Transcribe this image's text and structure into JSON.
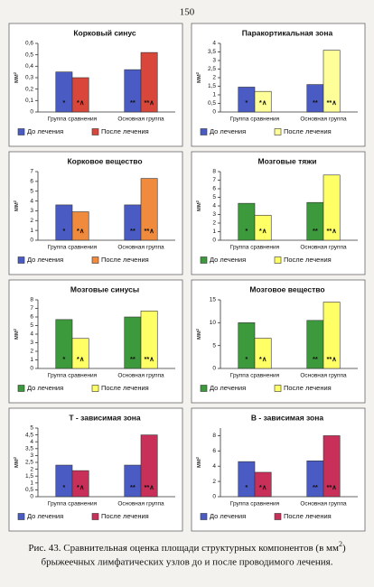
{
  "page_number": "150",
  "caption": [
    "Рис. 43. Сравнительная оценка площади структурных компонентов (в мм",
    "2",
    ")",
    "брыжеечных лимфатических узлов до и после проводимого лечения."
  ],
  "chart_data": [
    {
      "type": "bar",
      "title": "Корковый синус",
      "ylabel": "мм²",
      "categories": [
        "Группа сравнения",
        "Основная группа"
      ],
      "series": [
        {
          "name": "До лечения",
          "color": "#4a5cc4",
          "values": [
            0.35,
            0.37
          ],
          "bar_labels": [
            "*",
            "**"
          ]
        },
        {
          "name": "После лечения",
          "color": "#d9463a",
          "values": [
            0.3,
            0.52
          ],
          "bar_labels": [
            "*∧",
            "**∧"
          ]
        }
      ],
      "ylim": [
        0,
        0.6
      ],
      "yticks": [
        0,
        {
          "value": 0.1,
          "label": "0,1"
        },
        {
          "value": 0.2,
          "label": "0,2"
        },
        {
          "value": 0.3,
          "label": "0,3"
        },
        {
          "value": 0.4,
          "label": "0,4"
        },
        {
          "value": 0.5,
          "label": "0,5"
        },
        {
          "value": 0.6,
          "label": "0,6"
        }
      ],
      "grid": false
    },
    {
      "type": "bar",
      "title": "Паракортикальная зона",
      "ylabel": "мм²",
      "categories": [
        "Группа сравнения",
        "Основная группа"
      ],
      "series": [
        {
          "name": "До лечения",
          "color": "#4a5cc4",
          "values": [
            1.45,
            1.6
          ],
          "bar_labels": [
            "*",
            "**"
          ]
        },
        {
          "name": "После лечения",
          "color": "#ffff99",
          "values": [
            1.2,
            3.6
          ],
          "bar_labels": [
            "*∧",
            "**∧"
          ]
        }
      ],
      "ylim": [
        0,
        4
      ],
      "yticks": [
        0,
        {
          "value": 0.5,
          "label": "0,5"
        },
        1,
        {
          "value": 1.5,
          "label": "1,5"
        },
        2,
        {
          "value": 2.5,
          "label": "2,5"
        },
        3,
        {
          "value": 3.5,
          "label": "3,5"
        },
        4
      ],
      "grid": false
    },
    {
      "type": "bar",
      "title": "Корковое вещество",
      "ylabel": "мм²",
      "categories": [
        "Группа сравнения",
        "Основная группа"
      ],
      "series": [
        {
          "name": "До лечения",
          "color": "#4a5cc4",
          "values": [
            3.6,
            3.6
          ],
          "bar_labels": [
            "*",
            "**"
          ]
        },
        {
          "name": "После лечения",
          "color": "#f08a3c",
          "values": [
            2.9,
            6.3
          ],
          "bar_labels": [
            "*∧",
            "**∧"
          ]
        }
      ],
      "ylim": [
        0,
        7
      ],
      "yticks": [
        0,
        1,
        2,
        3,
        4,
        5,
        6,
        7
      ],
      "grid": false
    },
    {
      "type": "bar",
      "title": "Мозговые тяжи",
      "ylabel": "мм²",
      "categories": [
        "Группа сравнения",
        "Основная группа"
      ],
      "series": [
        {
          "name": "До лечения",
          "color": "#3c9a3c",
          "values": [
            4.3,
            4.4
          ],
          "bar_labels": [
            "*",
            "**"
          ]
        },
        {
          "name": "После лечения",
          "color": "#ffff66",
          "values": [
            2.9,
            7.6
          ],
          "bar_labels": [
            "*∧",
            "**∧"
          ]
        }
      ],
      "ylim": [
        0,
        8
      ],
      "yticks": [
        0,
        1,
        2,
        3,
        4,
        5,
        6,
        7,
        8
      ],
      "grid": false
    },
    {
      "type": "bar",
      "title": "Мозговые синусы",
      "ylabel": "мм²",
      "categories": [
        "Группа сравнения",
        "Основная группа"
      ],
      "series": [
        {
          "name": "До лечения",
          "color": "#3c9a3c",
          "values": [
            5.7,
            6.0
          ],
          "bar_labels": [
            "*",
            "**"
          ]
        },
        {
          "name": "После лечения",
          "color": "#ffff66",
          "values": [
            3.5,
            6.7
          ],
          "bar_labels": [
            "*∧",
            "**∧"
          ]
        }
      ],
      "ylim": [
        0,
        8
      ],
      "yticks": [
        0,
        1,
        2,
        3,
        4,
        5,
        6,
        7,
        8
      ],
      "grid": false
    },
    {
      "type": "bar",
      "title": "Мозговое вещество",
      "ylabel": "мм²",
      "categories": [
        "Группа сравнения",
        "Основная группа"
      ],
      "series": [
        {
          "name": "До лечения",
          "color": "#3c9a3c",
          "values": [
            10,
            10.5
          ],
          "bar_labels": [
            "*",
            "**"
          ]
        },
        {
          "name": "После лечения",
          "color": "#ffff66",
          "values": [
            6.6,
            14.5
          ],
          "bar_labels": [
            "*∧",
            "**∧"
          ]
        }
      ],
      "ylim": [
        0,
        15
      ],
      "yticks": [
        0,
        5,
        10,
        15
      ],
      "grid": false
    },
    {
      "type": "bar",
      "title": "Т - зависимая зона",
      "ylabel": "мм²",
      "categories": [
        "Группа сравнения",
        "Основная группа"
      ],
      "series": [
        {
          "name": "До лечения",
          "color": "#4a5cc4",
          "values": [
            2.3,
            2.3
          ],
          "bar_labels": [
            "*",
            "**"
          ]
        },
        {
          "name": "После лечения",
          "color": "#c8305a",
          "values": [
            1.9,
            4.5
          ],
          "bar_labels": [
            "*∧",
            "**∧"
          ]
        }
      ],
      "ylim": [
        0,
        5
      ],
      "yticks": [
        0,
        {
          "value": 0.5,
          "label": "0,5"
        },
        1,
        {
          "value": 1.5,
          "label": "1,5"
        },
        2,
        {
          "value": 2.5,
          "label": "2,5"
        },
        3,
        {
          "value": 3.5,
          "label": "3,5"
        },
        4,
        {
          "value": 4.5,
          "label": "4,5"
        },
        5
      ],
      "grid": false
    },
    {
      "type": "bar",
      "title": "В - зависимая зона",
      "ylabel": "мм²",
      "categories": [
        "Группа сравнения",
        "Основная группа"
      ],
      "series": [
        {
          "name": "До лечения",
          "color": "#4a5cc4",
          "values": [
            4.6,
            4.7
          ],
          "bar_labels": [
            "*",
            "**"
          ]
        },
        {
          "name": "После лечения",
          "color": "#c8305a",
          "values": [
            3.2,
            8.0
          ],
          "bar_labels": [
            "*∧",
            "**∧"
          ]
        }
      ],
      "ylim": [
        0,
        9
      ],
      "yticks": [
        0,
        2,
        4,
        6,
        8
      ],
      "grid": false
    }
  ]
}
